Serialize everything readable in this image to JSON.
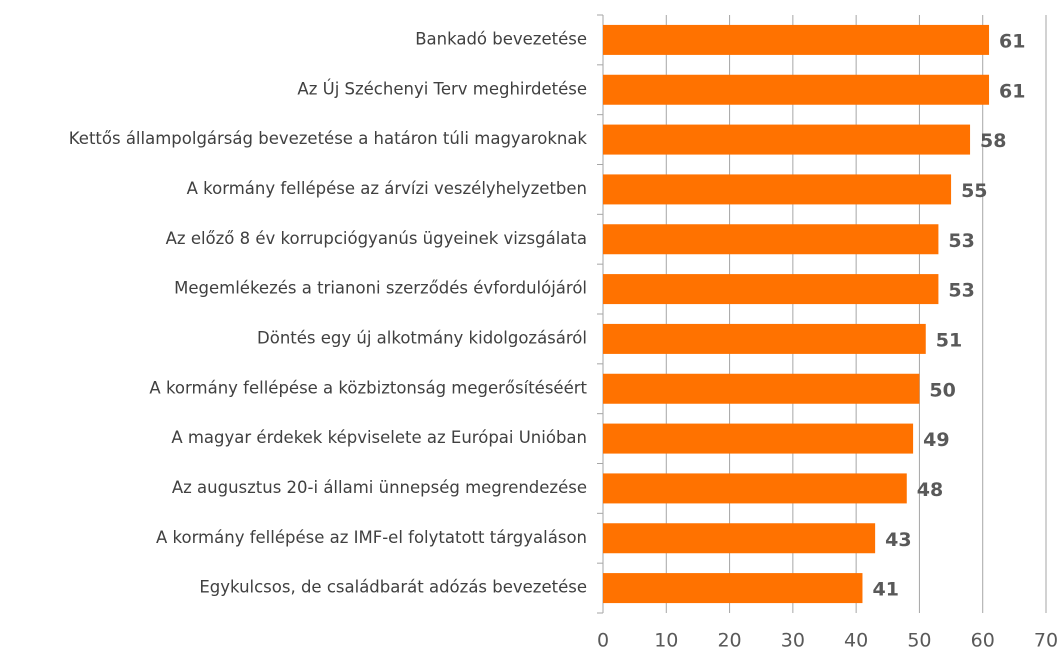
{
  "chart_data": {
    "type": "bar",
    "orientation": "horizontal",
    "categories": [
      "Bankadó bevezetése",
      "Az Új Széchenyi Terv meghirdetése",
      "Kettős állampolgárság bevezetése a határon túli magyaroknak",
      "A kormány fellépése az árvízi veszélyhelyzetben",
      "Az előző 8 év korrupciógyanús ügyeinek vizsgálata",
      "Megemlékezés a trianoni szerződés évfordulójáról",
      "Döntés egy új alkotmány kidolgozásáról",
      "A kormány fellépése a közbiztonság megerősítéséért",
      "A magyar érdekek képviselete az Európai Unióban",
      "Az augusztus 20-i állami ünnepség megrendezése",
      "A kormány fellépése az IMF-el folytatott tárgyaláson",
      "Egykulcsos, de családbarát adózás bevezetése"
    ],
    "values": [
      61,
      61,
      58,
      55,
      53,
      53,
      51,
      50,
      49,
      48,
      43,
      41
    ],
    "color": "#ff7200",
    "xlim": [
      0,
      70
    ],
    "xticks": [
      0,
      10,
      20,
      30,
      40,
      50,
      60,
      70
    ],
    "grid": true
  }
}
